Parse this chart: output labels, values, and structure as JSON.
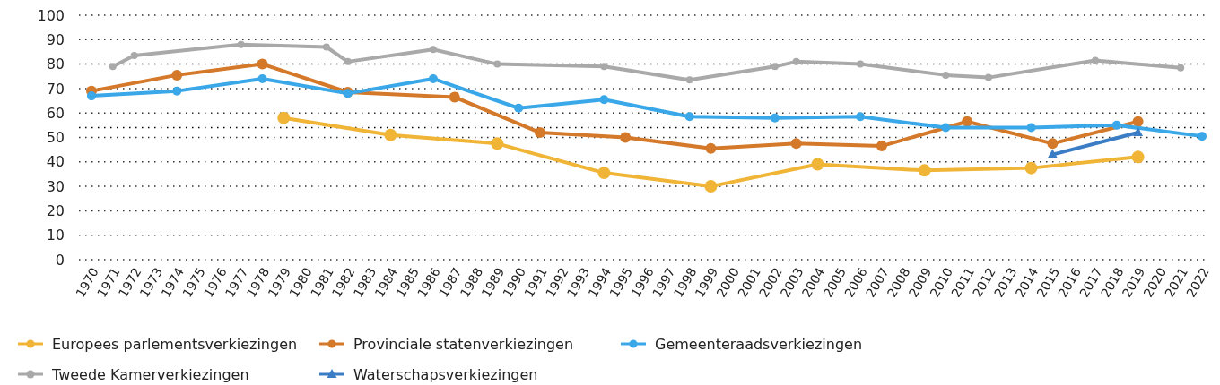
{
  "chart_data": {
    "type": "line",
    "categories": [
      "1970",
      "1971",
      "1972",
      "1973",
      "1974",
      "1975",
      "1976",
      "1977",
      "1978",
      "1979",
      "1980",
      "1981",
      "1982",
      "1983",
      "1984",
      "1985",
      "1986",
      "1987",
      "1988",
      "1989",
      "1990",
      "1991",
      "1992",
      "1993",
      "1994",
      "1995",
      "1996",
      "1997",
      "1998",
      "1999",
      "2000",
      "2001",
      "2002",
      "2003",
      "2004",
      "2005",
      "2006",
      "2007",
      "2008",
      "2009",
      "2010",
      "2011",
      "2012",
      "2013",
      "2014",
      "2015",
      "2016",
      "2017",
      "2018",
      "2019",
      "2020",
      "2021",
      "2022"
    ],
    "series": [
      {
        "name": "Europees parlementsverkiezingen",
        "color": "#f0b537",
        "marker": "circle",
        "values": [
          null,
          null,
          null,
          null,
          null,
          null,
          null,
          null,
          null,
          58,
          null,
          null,
          null,
          null,
          51,
          null,
          null,
          null,
          null,
          47.5,
          null,
          null,
          null,
          null,
          35.5,
          null,
          null,
          null,
          null,
          30,
          null,
          null,
          null,
          null,
          39,
          null,
          null,
          null,
          null,
          36.5,
          null,
          null,
          null,
          null,
          37.5,
          null,
          null,
          null,
          null,
          42,
          null,
          null,
          null
        ]
      },
      {
        "name": "Provinciale statenverkiezingen",
        "color": "#d47829",
        "marker": "circle",
        "values": [
          69,
          null,
          null,
          null,
          75.5,
          null,
          null,
          null,
          80,
          null,
          null,
          null,
          68.5,
          null,
          null,
          null,
          null,
          66.5,
          null,
          null,
          null,
          52,
          null,
          null,
          null,
          50,
          null,
          null,
          null,
          45.5,
          null,
          null,
          null,
          47.5,
          null,
          null,
          null,
          46.5,
          null,
          null,
          null,
          56.5,
          null,
          null,
          null,
          47.5,
          null,
          null,
          null,
          56.5,
          null,
          null,
          null
        ]
      },
      {
        "name": "Gemeenteraadsverkiezingen",
        "color": "#3aa8e8",
        "marker": "circle",
        "values": [
          67,
          null,
          null,
          null,
          69,
          null,
          null,
          null,
          74,
          null,
          null,
          null,
          68,
          null,
          null,
          null,
          74,
          null,
          null,
          null,
          62,
          null,
          null,
          null,
          65.5,
          null,
          null,
          null,
          58.5,
          null,
          null,
          null,
          58,
          null,
          null,
          null,
          58.5,
          null,
          null,
          null,
          54,
          null,
          null,
          null,
          54,
          null,
          null,
          null,
          55,
          null,
          null,
          null,
          50.5
        ]
      },
      {
        "name": "Tweede Kamerverkiezingen",
        "color": "#a9a9a9",
        "marker": "circle",
        "values": [
          null,
          79,
          83.5,
          null,
          null,
          null,
          null,
          88,
          null,
          null,
          null,
          87,
          81,
          null,
          null,
          null,
          86,
          null,
          null,
          80,
          null,
          null,
          null,
          null,
          79,
          null,
          null,
          null,
          73.5,
          null,
          null,
          null,
          79,
          81,
          null,
          null,
          80,
          null,
          null,
          null,
          75.5,
          null,
          74.5,
          null,
          null,
          null,
          null,
          81.5,
          null,
          null,
          null,
          78.5,
          null
        ]
      },
      {
        "name": "Waterschapsverkiezingen",
        "color": "#3b7dc4",
        "marker": "triangle",
        "values": [
          null,
          null,
          null,
          null,
          null,
          null,
          null,
          null,
          null,
          null,
          null,
          null,
          null,
          null,
          null,
          null,
          null,
          null,
          null,
          null,
          null,
          null,
          null,
          null,
          null,
          null,
          null,
          null,
          null,
          null,
          null,
          null,
          null,
          null,
          null,
          null,
          null,
          null,
          null,
          null,
          null,
          null,
          null,
          null,
          null,
          43,
          null,
          null,
          null,
          52,
          null,
          null,
          null
        ]
      }
    ],
    "ylim": [
      0,
      100
    ],
    "yticks": [
      0,
      10,
      20,
      30,
      40,
      50,
      60,
      70,
      80,
      90,
      100
    ],
    "grid": "y",
    "legend": "bottom",
    "ref_lines": [
      {
        "axis": "y",
        "value": 54,
        "color": "#000000",
        "line_style": "dotted"
      }
    ]
  }
}
